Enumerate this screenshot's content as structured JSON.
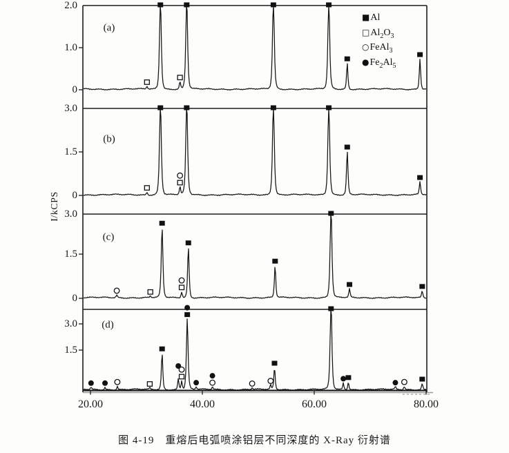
{
  "figure": {
    "caption": "图 4-19　重熔后电弧喷涂铝层不同深度的 X-Ray 衍射谱"
  },
  "legend": {
    "items": [
      {
        "icon": "filled-square-icon",
        "glyph": "■",
        "label": "Al"
      },
      {
        "icon": "open-square-icon",
        "glyph": "□",
        "label": "Al2O3"
      },
      {
        "icon": "open-circle-icon",
        "glyph": "○",
        "label": "FeAl3"
      },
      {
        "icon": "filled-circle-icon",
        "glyph": "●",
        "label": "Fe2Al5"
      }
    ]
  },
  "chart_data": {
    "type": "line",
    "title": "",
    "xlabel": "",
    "ylabel": "I/kCPS",
    "xlim": [
      18.6,
      80.1
    ],
    "grid": false,
    "legend_position": "top-right",
    "x_ticks": [
      {
        "value": 20,
        "label": "20.00"
      },
      {
        "value": 40,
        "label": "40.00"
      },
      {
        "value": 60,
        "label": "60.00"
      },
      {
        "value": 80,
        "label": "80.00"
      }
    ],
    "marker_key": {
      "Al": "filled-square",
      "Al2O3": "open-square",
      "FeAl3": "open-circle",
      "Fe2Al5": "filled-circle"
    },
    "panels": [
      {
        "label": "(a)",
        "ymax": 2.0,
        "y_ticks": [
          {
            "label": "2.0",
            "value": 2.0
          },
          {
            "label": "1.0",
            "value": 1.0
          },
          {
            "label": "0",
            "value": 0
          }
        ],
        "peaks": [
          {
            "x": 30.1,
            "h": 0.07,
            "phases": [
              "Al2O3"
            ]
          },
          {
            "x": 32.5,
            "h": 2.0,
            "clipped": true,
            "phases": [
              "Al"
            ]
          },
          {
            "x": 36.0,
            "h": 0.18,
            "phases": [
              "Al2O3"
            ]
          },
          {
            "x": 37.2,
            "h": 2.0,
            "clipped": true,
            "phases": [
              "Al"
            ]
          },
          {
            "x": 52.7,
            "h": 2.0,
            "clipped": true,
            "phases": [
              "Al"
            ]
          },
          {
            "x": 62.6,
            "h": 2.0,
            "clipped": true,
            "phases": [
              "Al"
            ]
          },
          {
            "x": 65.9,
            "h": 0.62,
            "phases": [
              "Al"
            ]
          },
          {
            "x": 78.9,
            "h": 0.72,
            "phases": [
              "Al"
            ]
          }
        ]
      },
      {
        "label": "(b)",
        "ymax": 3.0,
        "y_ticks": [
          {
            "label": "3.0",
            "value": 3.0
          },
          {
            "label": "1.5",
            "value": 1.5
          },
          {
            "label": "0",
            "value": 0
          }
        ],
        "peaks": [
          {
            "x": 30.1,
            "h": 0.1,
            "phases": [
              "Al2O3"
            ]
          },
          {
            "x": 32.5,
            "h": 3.0,
            "clipped": true,
            "phases": [
              "Al"
            ]
          },
          {
            "x": 36.0,
            "h": 0.28,
            "phases": [
              "Al2O3",
              "FeAl3"
            ]
          },
          {
            "x": 37.2,
            "h": 3.0,
            "clipped": true,
            "phases": [
              "Al"
            ]
          },
          {
            "x": 52.7,
            "h": 3.0,
            "clipped": true,
            "phases": [
              "Al"
            ]
          },
          {
            "x": 62.6,
            "h": 3.0,
            "clipped": true,
            "phases": [
              "Al"
            ]
          },
          {
            "x": 65.9,
            "h": 1.5,
            "phases": [
              "Al"
            ]
          },
          {
            "x": 78.9,
            "h": 0.45,
            "phases": [
              "Al"
            ]
          }
        ]
      },
      {
        "label": "(c)",
        "ymax": 3.0,
        "y_ticks": [
          {
            "label": "3.0",
            "value": 3.0
          },
          {
            "label": "1.5",
            "value": 1.5
          },
          {
            "label": "0",
            "value": 0
          }
        ],
        "peaks": [
          {
            "x": 24.7,
            "h": 0.1,
            "phases": [
              "FeAl3"
            ]
          },
          {
            "x": 30.7,
            "h": 0.06,
            "phases": [
              "Al2O3"
            ]
          },
          {
            "x": 32.8,
            "h": 2.5,
            "phases": [
              "Al"
            ]
          },
          {
            "x": 36.3,
            "h": 0.22,
            "phases": [
              "Al2O3",
              "FeAl3"
            ]
          },
          {
            "x": 37.5,
            "h": 1.8,
            "phases": [
              "Al"
            ]
          },
          {
            "x": 53.0,
            "h": 1.15,
            "phases": [
              "Al"
            ]
          },
          {
            "x": 63.0,
            "h": 3.0,
            "clipped": true,
            "phases": [
              "Al"
            ]
          },
          {
            "x": 66.3,
            "h": 0.32,
            "phases": [
              "Al"
            ]
          },
          {
            "x": 79.3,
            "h": 0.25,
            "phases": [
              "Al"
            ]
          }
        ]
      },
      {
        "label": "(d)",
        "ymax": 3.0,
        "y_ticks": [
          {
            "label": "3.0",
            "value": 3.0
          },
          {
            "label": "1.5",
            "value": 1.5
          }
        ],
        "peaks": [
          {
            "x": 20.1,
            "h": 0.1,
            "phases": [
              "Fe2Al5"
            ]
          },
          {
            "x": 22.6,
            "h": 0.1,
            "phases": [
              "Fe2Al5"
            ]
          },
          {
            "x": 24.8,
            "h": 0.15,
            "phases": [
              "FeAl3"
            ]
          },
          {
            "x": 30.6,
            "h": 0.07,
            "phases": [
              "Al2O3"
            ]
          },
          {
            "x": 32.8,
            "h": 1.65,
            "phases": [
              "Al"
            ]
          },
          {
            "x": 35.7,
            "h": 0.5,
            "mo": 12,
            "phases": [
              "Fe2Al5"
            ]
          },
          {
            "x": 36.3,
            "h": 0.4,
            "phases": [
              "Al2O3",
              "FeAl3"
            ]
          },
          {
            "x": 37.3,
            "h": 3.2,
            "phases": [
              "Al",
              "Fe2Al5"
            ]
          },
          {
            "x": 38.9,
            "h": 0.12,
            "phases": [
              "Fe2Al5"
            ]
          },
          {
            "x": 41.8,
            "h": 0.12,
            "phases": [
              "FeAl3",
              "Fe2Al5"
            ]
          },
          {
            "x": 48.9,
            "h": 0.08,
            "phases": [
              "FeAl3"
            ]
          },
          {
            "x": 52.2,
            "h": 0.2,
            "phases": [
              "FeAl3"
            ]
          },
          {
            "x": 52.9,
            "h": 1.0,
            "phases": [
              "Al"
            ]
          },
          {
            "x": 63.0,
            "h": 3.6,
            "clipped": true,
            "phases": [
              "Al"
            ]
          },
          {
            "x": 65.2,
            "h": 0.3,
            "phases": [
              "Fe2Al5"
            ]
          },
          {
            "x": 66.1,
            "h": 0.35,
            "phases": [
              "Al"
            ]
          },
          {
            "x": 74.5,
            "h": 0.12,
            "phases": [
              "Fe2Al5"
            ]
          },
          {
            "x": 76.1,
            "h": 0.15,
            "phases": [
              "FeAl3"
            ]
          },
          {
            "x": 79.3,
            "h": 0.28,
            "phases": [
              "Al"
            ]
          }
        ]
      }
    ]
  }
}
